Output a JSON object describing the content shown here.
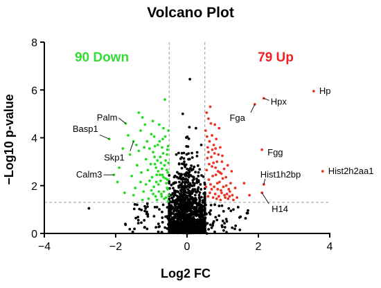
{
  "chart_data": {
    "type": "scatter",
    "title": "Volcano Plot",
    "xlabel": "Log2 FC",
    "ylabel": "−Log10 p-value",
    "xlim": [
      -4,
      4
    ],
    "ylim": [
      0,
      8
    ],
    "xticks": [
      -4,
      -2,
      0,
      2,
      4
    ],
    "yticks": [
      0,
      2,
      4,
      6,
      8
    ],
    "xtick_labels": [
      "−4",
      "−2",
      "0",
      "2",
      "4"
    ],
    "ytick_labels": [
      "0",
      "2",
      "4",
      "6",
      "8"
    ],
    "fc_threshold": 0.5,
    "p_threshold": 1.3,
    "down_label": "90 Down",
    "up_label": "79 Up",
    "colors": {
      "down": "#22dd22",
      "up": "#ee3322",
      "ns": "#000000",
      "threshold_line": "#999999",
      "down_text": "#33dd33",
      "up_text": "#ee2222"
    },
    "labeled_points": [
      {
        "name": "Hp",
        "x": 3.55,
        "y": 5.95
      },
      {
        "name": "Hpx",
        "x": 2.15,
        "y": 5.65
      },
      {
        "name": "Fga",
        "x": 1.9,
        "y": 5.4
      },
      {
        "name": "Fgg",
        "x": 2.1,
        "y": 3.5
      },
      {
        "name": "Hist2h2aa1",
        "x": 3.8,
        "y": 2.6
      },
      {
        "name": "Hist1h2bp",
        "x": 2.15,
        "y": 2.05
      },
      {
        "name": "H14",
        "x": 2.1,
        "y": 1.7
      },
      {
        "name": "Palm",
        "x": -1.72,
        "y": 4.6
      },
      {
        "name": "Basp1",
        "x": -2.18,
        "y": 3.95
      },
      {
        "name": "Skp1",
        "x": -1.5,
        "y": 3.85
      },
      {
        "name": "Calm3",
        "x": -2.05,
        "y": 2.45
      }
    ],
    "series": [
      {
        "name": "Down",
        "points": [
          [
            -2.05,
            2.45
          ],
          [
            -2.18,
            3.95
          ],
          [
            -1.72,
            4.6
          ],
          [
            -1.5,
            3.85
          ],
          [
            -1.35,
            5.05
          ],
          [
            -1.3,
            4.3
          ],
          [
            -1.25,
            4.85
          ],
          [
            -1.2,
            3.6
          ],
          [
            -1.15,
            3.1
          ],
          [
            -1.1,
            2.65
          ],
          [
            -1.05,
            2.2
          ],
          [
            -1.0,
            1.8
          ],
          [
            -0.95,
            3.4
          ],
          [
            -0.92,
            4.05
          ],
          [
            -0.9,
            2.9
          ],
          [
            -0.88,
            1.55
          ],
          [
            -0.85,
            2.45
          ],
          [
            -0.82,
            3.7
          ],
          [
            -0.8,
            2.05
          ],
          [
            -0.78,
            4.55
          ],
          [
            -0.75,
            3.2
          ],
          [
            -0.72,
            1.65
          ],
          [
            -0.7,
            2.7
          ],
          [
            -0.68,
            3.95
          ],
          [
            -0.66,
            2.35
          ],
          [
            -0.64,
            1.45
          ],
          [
            -0.62,
            5.6
          ],
          [
            -0.6,
            3.05
          ],
          [
            -0.58,
            2.1
          ],
          [
            -0.56,
            1.9
          ],
          [
            -0.55,
            3.5
          ],
          [
            -0.54,
            2.55
          ],
          [
            -0.53,
            1.35
          ],
          [
            -0.52,
            4.3
          ],
          [
            -1.6,
            3.3
          ],
          [
            -1.55,
            2.4
          ],
          [
            -1.45,
            1.9
          ],
          [
            -1.4,
            2.85
          ],
          [
            -1.65,
            4.1
          ],
          [
            -1.8,
            3.55
          ],
          [
            -1.9,
            2.75
          ],
          [
            -1.95,
            2.15
          ],
          [
            -1.75,
            1.7
          ],
          [
            -1.5,
            1.6
          ],
          [
            -1.42,
            3.7
          ],
          [
            -1.28,
            2.55
          ],
          [
            -1.22,
            1.75
          ],
          [
            -1.18,
            4.55
          ],
          [
            -1.12,
            3.85
          ],
          [
            -1.08,
            1.45
          ],
          [
            -1.02,
            2.9
          ],
          [
            -0.98,
            2.35
          ],
          [
            -0.96,
            4.7
          ],
          [
            -0.93,
            1.95
          ],
          [
            -0.91,
            3.2
          ],
          [
            -0.87,
            2.75
          ],
          [
            -0.84,
            1.4
          ],
          [
            -0.83,
            3.05
          ],
          [
            -0.81,
            2.6
          ],
          [
            -0.79,
            1.75
          ],
          [
            -0.77,
            3.85
          ],
          [
            -0.74,
            2.2
          ],
          [
            -0.73,
            2.95
          ],
          [
            -0.71,
            1.55
          ],
          [
            -0.69,
            2.45
          ],
          [
            -0.67,
            3.35
          ],
          [
            -0.65,
            1.75
          ],
          [
            -0.63,
            2.85
          ],
          [
            -0.61,
            4.05
          ],
          [
            -0.59,
            1.5
          ],
          [
            -0.57,
            2.65
          ],
          [
            -0.56,
            3.3
          ],
          [
            -0.55,
            2.25
          ],
          [
            -0.54,
            1.85
          ],
          [
            -0.53,
            3.65
          ],
          [
            -0.52,
            2.95
          ],
          [
            -0.51,
            1.6
          ],
          [
            -1.3,
            2.15
          ],
          [
            -1.35,
            3.45
          ],
          [
            -1.25,
            1.4
          ],
          [
            -1.15,
            2.05
          ],
          [
            -1.05,
            3.55
          ],
          [
            -1.0,
            4.15
          ],
          [
            -0.95,
            1.65
          ],
          [
            -0.9,
            3.65
          ],
          [
            -0.86,
            2.15
          ],
          [
            -0.76,
            2.45
          ],
          [
            -0.7,
            3.6
          ],
          [
            -0.66,
            4.4
          ],
          [
            -0.6,
            2.3
          ]
        ]
      },
      {
        "name": "Up",
        "points": [
          [
            3.55,
            5.95
          ],
          [
            2.15,
            5.65
          ],
          [
            1.9,
            5.4
          ],
          [
            2.1,
            3.5
          ],
          [
            3.8,
            2.6
          ],
          [
            2.15,
            2.05
          ],
          [
            2.1,
            1.7
          ],
          [
            0.52,
            4.3
          ],
          [
            0.55,
            5.05
          ],
          [
            0.58,
            3.6
          ],
          [
            0.6,
            4.8
          ],
          [
            0.62,
            2.9
          ],
          [
            0.65,
            5.3
          ],
          [
            0.68,
            3.2
          ],
          [
            0.7,
            4.1
          ],
          [
            0.72,
            2.4
          ],
          [
            0.75,
            3.7
          ],
          [
            0.78,
            4.55
          ],
          [
            0.8,
            2.75
          ],
          [
            0.82,
            3.95
          ],
          [
            0.85,
            2.1
          ],
          [
            0.88,
            3.3
          ],
          [
            0.9,
            4.4
          ],
          [
            0.92,
            2.55
          ],
          [
            0.95,
            1.8
          ],
          [
            0.98,
            3.0
          ],
          [
            1.0,
            2.3
          ],
          [
            1.05,
            1.6
          ],
          [
            1.1,
            2.0
          ],
          [
            1.15,
            1.45
          ],
          [
            1.2,
            1.75
          ],
          [
            1.3,
            1.4
          ],
          [
            1.6,
            2.1
          ],
          [
            1.75,
            1.6
          ],
          [
            1.25,
            2.6
          ],
          [
            0.53,
            1.95
          ],
          [
            0.55,
            2.65
          ],
          [
            0.57,
            3.15
          ],
          [
            0.59,
            1.55
          ],
          [
            0.61,
            2.25
          ],
          [
            0.63,
            3.85
          ],
          [
            0.64,
            1.7
          ],
          [
            0.66,
            2.05
          ],
          [
            0.67,
            4.6
          ],
          [
            0.69,
            1.85
          ],
          [
            0.71,
            3.5
          ],
          [
            0.73,
            1.5
          ],
          [
            0.74,
            2.95
          ],
          [
            0.76,
            1.95
          ],
          [
            0.77,
            3.35
          ],
          [
            0.79,
            1.65
          ],
          [
            0.81,
            2.45
          ],
          [
            0.83,
            1.45
          ],
          [
            0.84,
            3.0
          ],
          [
            0.86,
            1.85
          ],
          [
            0.87,
            2.6
          ],
          [
            0.89,
            1.55
          ],
          [
            0.91,
            2.15
          ],
          [
            0.93,
            3.6
          ],
          [
            0.94,
            1.4
          ],
          [
            0.96,
            2.5
          ],
          [
            0.97,
            1.7
          ],
          [
            0.99,
            3.25
          ],
          [
            1.02,
            1.95
          ],
          [
            1.04,
            2.7
          ],
          [
            1.07,
            1.5
          ],
          [
            1.09,
            2.35
          ],
          [
            1.12,
            1.65
          ],
          [
            1.14,
            2.85
          ],
          [
            1.17,
            1.85
          ],
          [
            1.19,
            1.55
          ],
          [
            1.22,
            2.1
          ],
          [
            1.27,
            1.6
          ],
          [
            1.35,
            1.9
          ],
          [
            1.4,
            1.5
          ],
          [
            0.56,
            4.05
          ],
          [
            0.6,
            3.4
          ],
          [
            0.7,
            2.8
          ],
          [
            0.8,
            3.55
          ]
        ]
      },
      {
        "name": "NS",
        "points": [
          [
            -2.75,
            1.05
          ],
          [
            0.08,
            6.45
          ],
          [
            -0.3,
            3.3
          ],
          [
            0.25,
            4.4
          ],
          [
            -0.12,
            5.0
          ],
          [
            0.32,
            2.55
          ],
          [
            -0.38,
            2.1
          ],
          [
            0.15,
            1.75
          ],
          [
            -0.22,
            2.9
          ],
          [
            0.4,
            3.7
          ],
          [
            -0.45,
            1.6
          ],
          [
            0.05,
            2.35
          ],
          [
            -0.05,
            1.4
          ],
          [
            0.2,
            1.1
          ],
          [
            -0.28,
            1.25
          ],
          [
            0.35,
            1.45
          ],
          [
            1.3,
            1.0
          ],
          [
            1.7,
            0.85
          ],
          [
            1.5,
            0.7
          ],
          [
            1.1,
            0.6
          ],
          [
            -1.1,
            0.8
          ],
          [
            -1.4,
            1.2
          ],
          [
            -1.2,
            0.55
          ],
          [
            -0.9,
            1.1
          ],
          [
            -0.7,
            0.9
          ],
          [
            -0.8,
            0.4
          ],
          [
            0.9,
            1.15
          ],
          [
            0.75,
            0.5
          ],
          [
            -0.6,
            0.7
          ],
          [
            0.65,
            0.8
          ]
        ]
      }
    ]
  }
}
